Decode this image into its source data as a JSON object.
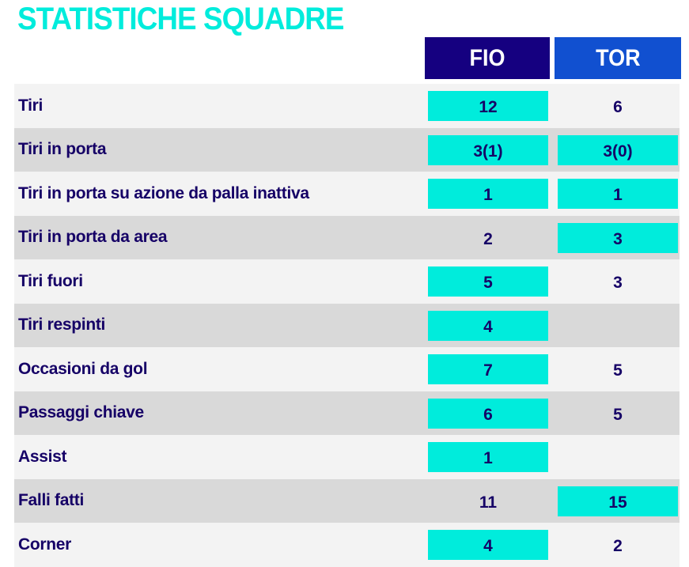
{
  "title": "STATISTICHE SQUADRE",
  "colors": {
    "accent": "#00ecdc",
    "text": "#150066",
    "home": "#150080",
    "away": "#1150d0",
    "row_light": "#f3f3f3",
    "row_dark": "#d9d9d9"
  },
  "teams": {
    "home": "FIO",
    "away": "TOR"
  },
  "rows": [
    {
      "label": "Tiri",
      "home": "12",
      "away": "6",
      "home_hl": true,
      "away_hl": false
    },
    {
      "label": "Tiri in porta",
      "home": "3(1)",
      "away": "3(0)",
      "home_hl": true,
      "away_hl": true
    },
    {
      "label": "Tiri in porta su azione da palla inattiva",
      "home": "1",
      "away": "1",
      "home_hl": true,
      "away_hl": true
    },
    {
      "label": "Tiri in porta da area",
      "home": "2",
      "away": "3",
      "home_hl": false,
      "away_hl": true
    },
    {
      "label": "Tiri fuori",
      "home": "5",
      "away": "3",
      "home_hl": true,
      "away_hl": false
    },
    {
      "label": "Tiri respinti",
      "home": "4",
      "away": "",
      "home_hl": true,
      "away_hl": false
    },
    {
      "label": "Occasioni da gol",
      "home": "7",
      "away": "5",
      "home_hl": true,
      "away_hl": false
    },
    {
      "label": "Passaggi chiave",
      "home": "6",
      "away": "5",
      "home_hl": true,
      "away_hl": false
    },
    {
      "label": "Assist",
      "home": "1",
      "away": "",
      "home_hl": true,
      "away_hl": false
    },
    {
      "label": "Falli fatti",
      "home": "11",
      "away": "15",
      "home_hl": false,
      "away_hl": true
    },
    {
      "label": "Corner",
      "home": "4",
      "away": "2",
      "home_hl": true,
      "away_hl": false
    }
  ]
}
